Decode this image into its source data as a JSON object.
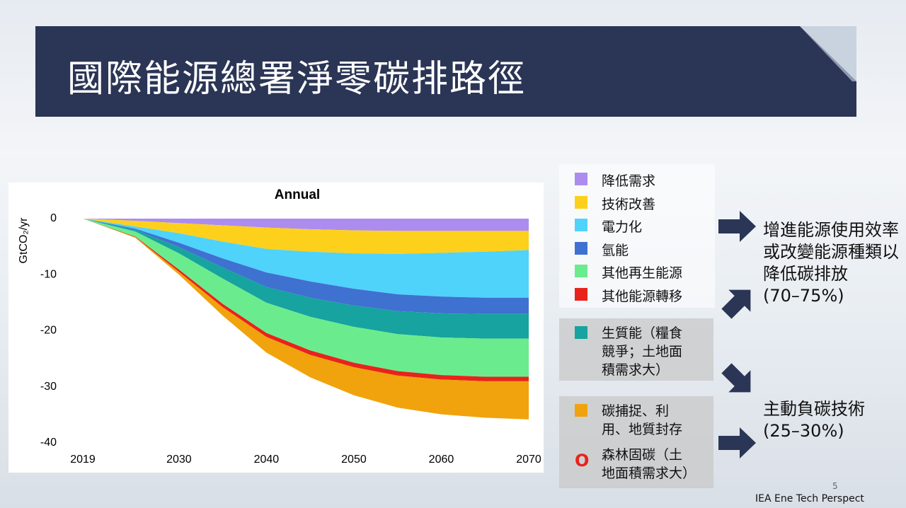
{
  "title": "國際能源總署淨零碳排路徑",
  "chart_data": {
    "type": "area",
    "title": "Annual",
    "y_label": "GtCO₂/yr",
    "stacked": true,
    "x": [
      2019,
      2025,
      2030,
      2035,
      2040,
      2045,
      2050,
      2055,
      2060,
      2065,
      2070
    ],
    "xlim": [
      2019,
      2070
    ],
    "xticks": [
      2019,
      2030,
      2040,
      2050,
      2060,
      2070
    ],
    "ylim": [
      -40,
      0
    ],
    "yticks": [
      0,
      -10,
      -20,
      -30,
      -40
    ],
    "series": [
      {
        "name": "降低需求",
        "color": "#ad8cf0",
        "values": [
          0,
          -0.4,
          -0.8,
          -1.2,
          -1.6,
          -1.9,
          -2.1,
          -2.2,
          -2.2,
          -2.2,
          -2.2
        ]
      },
      {
        "name": "技術改善",
        "color": "#fdd11b",
        "values": [
          0,
          -1.0,
          -1.8,
          -2.9,
          -3.8,
          -4.0,
          -4.1,
          -4.1,
          -3.9,
          -3.7,
          -3.4
        ]
      },
      {
        "name": "電力化",
        "color": "#4fd3fb",
        "values": [
          0,
          -0.4,
          -1.7,
          -3.0,
          -4.2,
          -5.3,
          -6.3,
          -7.2,
          -7.8,
          -8.2,
          -8.5
        ]
      },
      {
        "name": "氫能",
        "color": "#3f71d0",
        "values": [
          0,
          -0.2,
          -0.8,
          -1.6,
          -2.6,
          -2.9,
          -3.0,
          -3.0,
          -3.0,
          -2.9,
          -2.9
        ]
      },
      {
        "name": "生質能（糧食競爭；土地面積需求大）",
        "color": "#17a39f",
        "values": [
          0,
          -0.3,
          -1.1,
          -2.0,
          -2.8,
          -3.4,
          -3.8,
          -4.1,
          -4.3,
          -4.4,
          -4.4
        ]
      },
      {
        "name": "其他再生能源",
        "color": "#6aec8e",
        "values": [
          0,
          -0.9,
          -2.9,
          -4.5,
          -5.4,
          -6.0,
          -6.4,
          -6.6,
          -6.7,
          -6.8,
          -6.8
        ]
      },
      {
        "name": "其他能源轉移",
        "color": "#e8231b",
        "values": [
          0,
          -0.1,
          -0.4,
          -0.6,
          -0.7,
          -0.8,
          -0.8,
          -0.8,
          -0.8,
          -0.8,
          -0.8
        ]
      },
      {
        "name": "碳捕捉、利用、地質封存",
        "color": "#f0a30c",
        "values": [
          0,
          -0.1,
          -0.5,
          -1.5,
          -2.8,
          -4.0,
          -5.0,
          -5.7,
          -6.2,
          -6.5,
          -6.8
        ]
      }
    ]
  },
  "legend_extra": {
    "marker": "O",
    "label": "森林固碳（土地面積需求大）"
  },
  "notes": [
    {
      "text": "增進能源使用效率或改變能源種類以降低碳排放",
      "share": "(70–75%)"
    },
    {
      "text": "主動負碳技術",
      "share": "(25–30%)"
    }
  ],
  "page_number": "5",
  "source": "IEA Ene Tech Perspect"
}
